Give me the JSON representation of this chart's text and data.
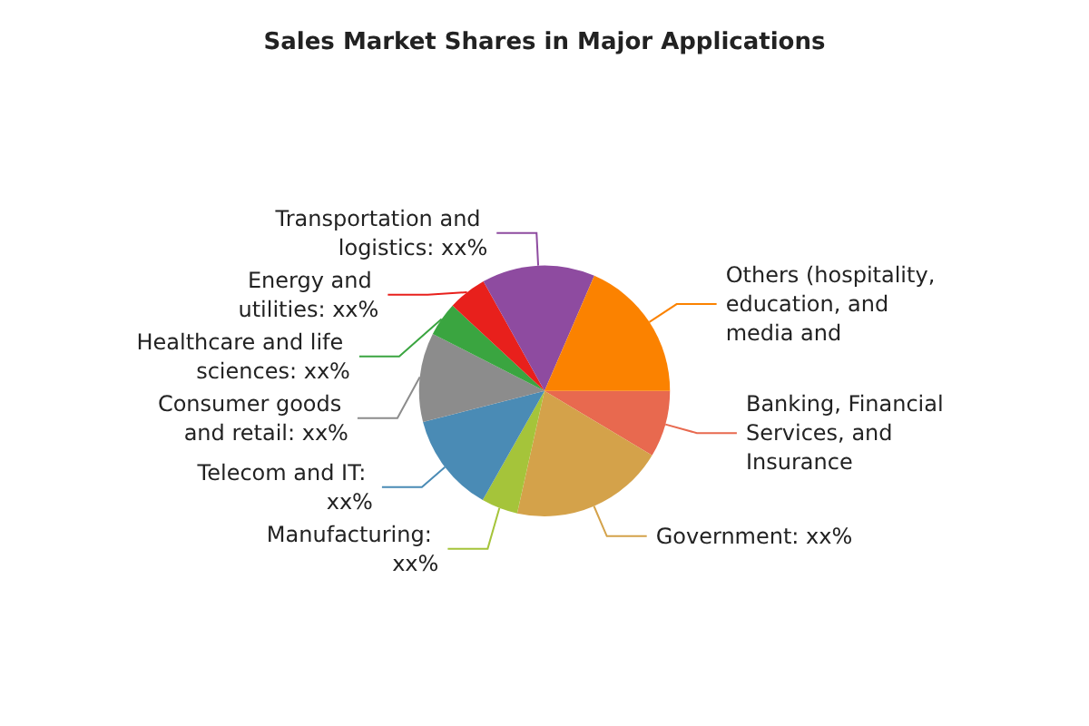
{
  "chart_data": {
    "type": "pie",
    "title": "Sales Market Shares in Major Applications",
    "categories": [
      "Banking, Financial Services, and Insurance",
      "Government: xx%",
      "Manufacturing: xx%",
      "Telecom and IT: xx%",
      "Consumer goods and retail: xx%",
      "Healthcare and life sciences: xx%",
      "Energy and utilities: xx%",
      "Transportation and logistics: xx%",
      "Others (hospitality, education, and media and"
    ],
    "values": [
      8.6,
      19.9,
      4.7,
      12.8,
      11.5,
      4.4,
      5,
      14.6,
      18.5
    ],
    "colors": [
      "#e8694f",
      "#d4a24a",
      "#a5c43a",
      "#4a8bb5",
      "#8c8c8c",
      "#3aa540",
      "#e8201c",
      "#8e4ba0",
      "#fb8200"
    ],
    "legend": false
  }
}
